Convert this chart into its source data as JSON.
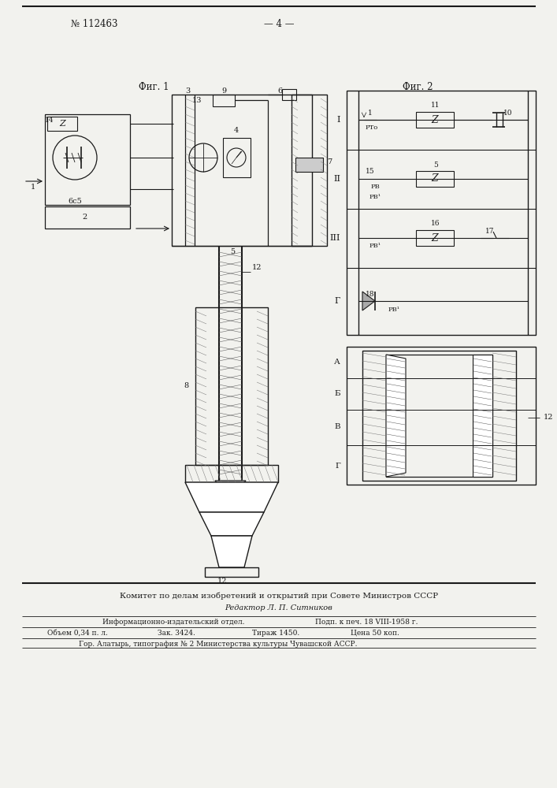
{
  "patent_number": "№ 112463",
  "page_number": "— 4 —",
  "fig1_label": "Фиг. 1",
  "fig2_label": "Фиг. 2",
  "bg_color": "#f2f2ee",
  "line_color": "#1a1a1a",
  "footer_text1": "Комитет по делам изобретений и открытий при Совете Министров СССР",
  "footer_editor": "Редактор Л. П. Ситников",
  "footer_r1c1": "Информационно-издательский отдел.",
  "footer_r1c2": "Подп. к печ. 18 VIII-1958 г.",
  "footer_r2c1": "Объем 0,34 п. л.",
  "footer_r2c2": "Зак. 3424.",
  "footer_r2c3": "Тираж 1450.",
  "footer_r2c4": "Цена 50 коп.",
  "footer_r3": "Гор. Алатырь, типография № 2 Министерства культуры Чувашской АССР."
}
